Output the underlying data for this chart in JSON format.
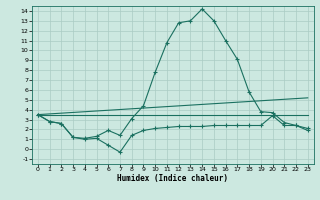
{
  "title": "",
  "xlabel": "Humidex (Indice chaleur)",
  "bg_color": "#cce8e0",
  "grid_color": "#aaccc4",
  "line_color": "#1a7060",
  "xlim": [
    -0.5,
    23.5
  ],
  "ylim": [
    -1.5,
    14.5
  ],
  "xticks": [
    0,
    1,
    2,
    3,
    4,
    5,
    6,
    7,
    8,
    9,
    10,
    11,
    12,
    13,
    14,
    15,
    16,
    17,
    18,
    19,
    20,
    21,
    22,
    23
  ],
  "yticks": [
    -1,
    0,
    1,
    2,
    3,
    4,
    5,
    6,
    7,
    8,
    9,
    10,
    11,
    12,
    13,
    14
  ],
  "line1_x": [
    0,
    1,
    2,
    3,
    4,
    5,
    6,
    7,
    8,
    9,
    10,
    11,
    12,
    13,
    14,
    15,
    16,
    17,
    18,
    19,
    20,
    21,
    22,
    23
  ],
  "line1_y": [
    3.5,
    2.8,
    2.6,
    1.2,
    1.1,
    1.3,
    1.9,
    1.4,
    3.1,
    4.4,
    7.8,
    10.8,
    12.8,
    13.0,
    14.2,
    13.0,
    11.0,
    9.1,
    5.8,
    3.8,
    3.7,
    2.7,
    2.4,
    2.1
  ],
  "line2_x": [
    0,
    23
  ],
  "line2_y": [
    3.5,
    5.2
  ],
  "line3_x": [
    0,
    23
  ],
  "line3_y": [
    3.5,
    3.5
  ],
  "line4_x": [
    0,
    1,
    2,
    3,
    4,
    5,
    6,
    7,
    8,
    9,
    10,
    11,
    12,
    13,
    14,
    15,
    16,
    17,
    18,
    19,
    20,
    21,
    22,
    23
  ],
  "line4_y": [
    3.5,
    2.8,
    2.6,
    1.2,
    1.0,
    1.1,
    0.4,
    -0.3,
    1.4,
    1.9,
    2.1,
    2.2,
    2.3,
    2.3,
    2.3,
    2.4,
    2.4,
    2.4,
    2.4,
    2.4,
    3.4,
    2.4,
    2.4,
    1.9
  ]
}
